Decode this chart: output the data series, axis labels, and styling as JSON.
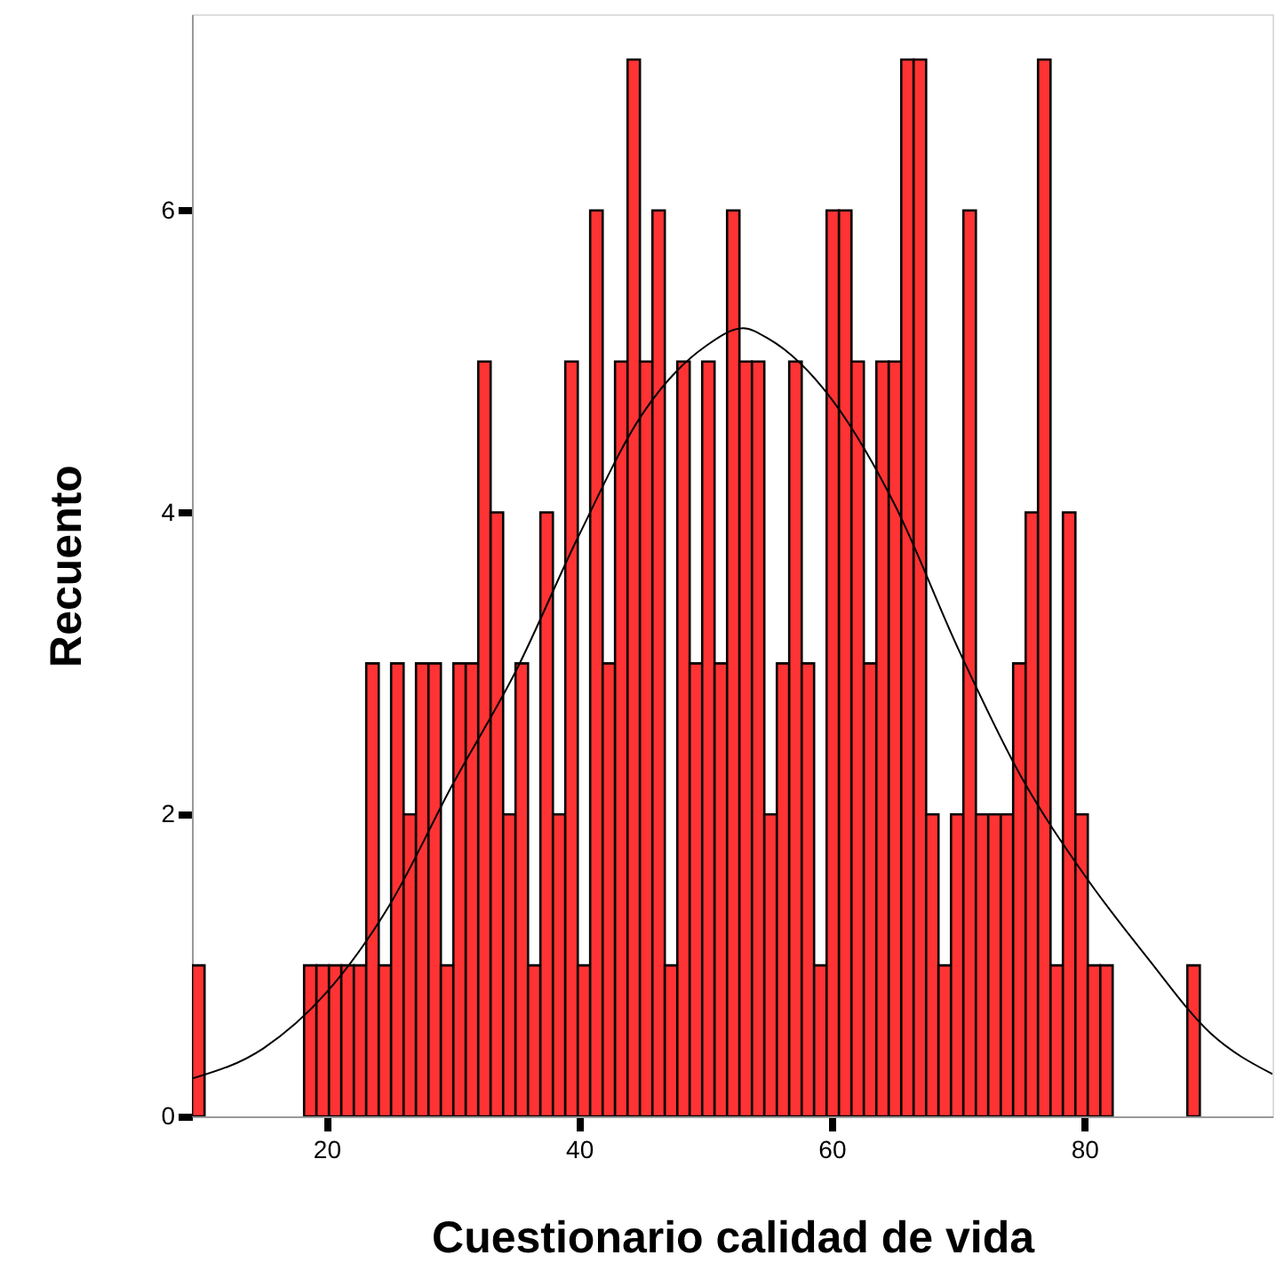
{
  "chart_data": {
    "type": "histogram",
    "xlabel": "Cuestionario calidad de vida",
    "ylabel": "Recuento",
    "xlim": [
      9.35,
      94.9
    ],
    "ylim": [
      0,
      7.3
    ],
    "xticks": [
      20,
      40,
      60,
      80
    ],
    "yticks": [
      0,
      2,
      4,
      6
    ],
    "grid": false,
    "series": [
      {
        "type": "histogram",
        "color": "#ff3333",
        "bins": [
          9.36,
          10.35,
          11.33,
          12.32,
          13.3,
          14.29,
          15.27,
          16.26,
          17.24,
          18.23,
          19.21,
          20.2,
          21.18,
          22.17,
          23.15,
          24.14,
          25.12,
          26.11,
          27.09,
          28.08,
          29.06,
          30.05,
          31.03,
          32.02,
          33.0,
          33.99,
          34.97,
          35.96,
          36.94,
          37.93,
          38.91,
          39.9,
          40.88,
          41.87,
          42.85,
          43.84,
          44.82,
          45.81,
          46.79,
          47.78,
          48.76,
          49.75,
          50.73,
          51.72,
          52.7,
          53.69,
          54.67,
          55.66,
          56.64,
          57.63,
          58.61,
          59.6,
          60.58,
          61.57,
          62.55,
          63.54,
          64.52,
          65.51,
          66.49,
          67.48,
          68.46,
          69.45,
          70.43,
          71.42,
          72.4,
          73.39,
          74.37,
          75.36,
          76.34,
          77.33,
          78.31,
          79.3,
          80.28,
          81.27,
          82.25,
          83.24,
          84.22,
          85.21,
          86.19,
          87.18,
          88.16,
          89.15
        ],
        "values": [
          1,
          0,
          0,
          0,
          0,
          0,
          0,
          0,
          0,
          1,
          1,
          1,
          1,
          1,
          3,
          1,
          3,
          2,
          3,
          3,
          1,
          3,
          3,
          5,
          4,
          2,
          3,
          1,
          4,
          2,
          5,
          1,
          6,
          3,
          5,
          7,
          5,
          6,
          1,
          5,
          3,
          5,
          3,
          6,
          5,
          5,
          2,
          3,
          5,
          3,
          1,
          6,
          6,
          5,
          3,
          5,
          5,
          7,
          7,
          2,
          1,
          2,
          6,
          2,
          2,
          2,
          3,
          4,
          7,
          1,
          4,
          2,
          1,
          1,
          0,
          0,
          0,
          0,
          0,
          0,
          1
        ]
      },
      {
        "type": "line",
        "color": "#000000",
        "x": [
          9.35,
          15,
          20,
          25,
          30,
          35,
          40,
          45,
          50,
          53,
          55,
          60,
          65,
          70,
          75,
          80,
          85,
          90,
          94.9
        ],
        "values": [
          0.25,
          0.45,
          0.82,
          1.4,
          2.2,
          2.95,
          3.85,
          4.65,
          5.1,
          5.22,
          5.15,
          4.75,
          4.05,
          3.1,
          2.25,
          1.6,
          1.05,
          0.55,
          0.28
        ]
      }
    ]
  }
}
